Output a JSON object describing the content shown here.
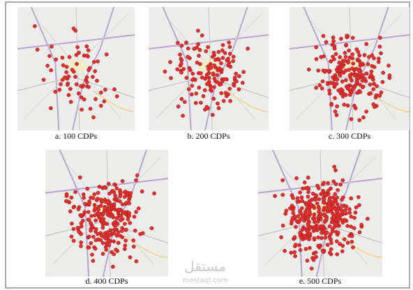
{
  "panels": [
    {
      "caption": "a.  100 CDPs"
    },
    {
      "caption": "b.  200 CDPs"
    },
    {
      "caption": "c.  300 CDPs"
    },
    {
      "caption": "d.  400 CDPs"
    },
    {
      "caption": "e.  500 CDPs"
    }
  ],
  "watermark": {
    "arabic": "مستقل",
    "latin": "mostaql.com"
  }
}
